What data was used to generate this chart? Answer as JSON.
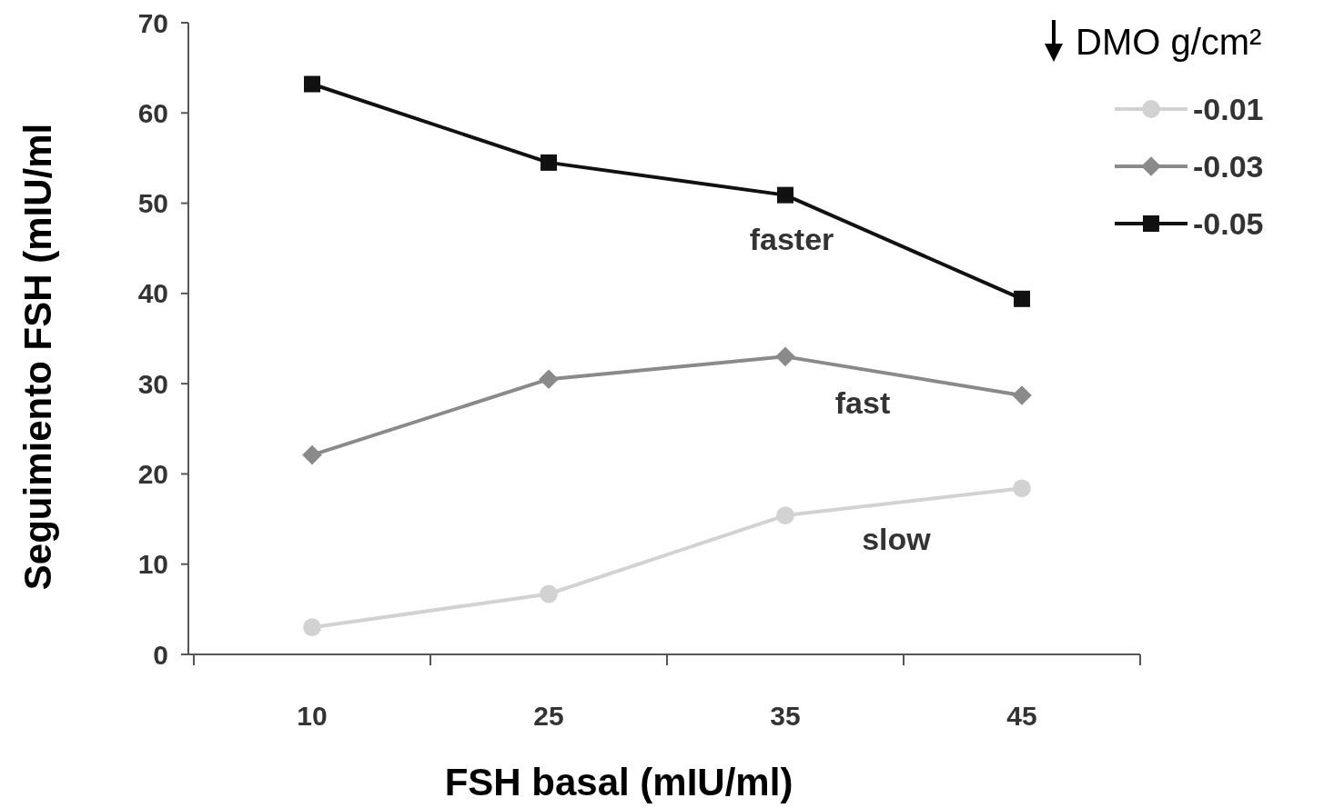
{
  "chart_data": {
    "type": "line",
    "xlabel": "FSH basal (mIU/ml)",
    "ylabel": "Seguimiento FSH (mIU/ml",
    "legend_title": "DMO g/cm²",
    "categories": [
      "10",
      "25",
      "35",
      "45"
    ],
    "series": [
      {
        "name": "-0.01",
        "color": "#d2d2d2",
        "marker": "circle",
        "values": [
          3.0,
          6.7,
          15.4,
          18.4
        ]
      },
      {
        "name": "-0.03",
        "color": "#8a8a8a",
        "marker": "diamond",
        "values": [
          22.1,
          30.5,
          33.0,
          28.7
        ]
      },
      {
        "name": "-0.05",
        "color": "#111111",
        "marker": "square",
        "values": [
          63.2,
          54.5,
          50.9,
          39.4
        ]
      }
    ],
    "ylim": [
      0,
      70
    ],
    "yticks": [
      0,
      10,
      20,
      30,
      40,
      50,
      60,
      70
    ],
    "grid": false,
    "legend": "top right",
    "line_style": "solid",
    "annotations": [
      "faster",
      "fast",
      "slow"
    ]
  }
}
